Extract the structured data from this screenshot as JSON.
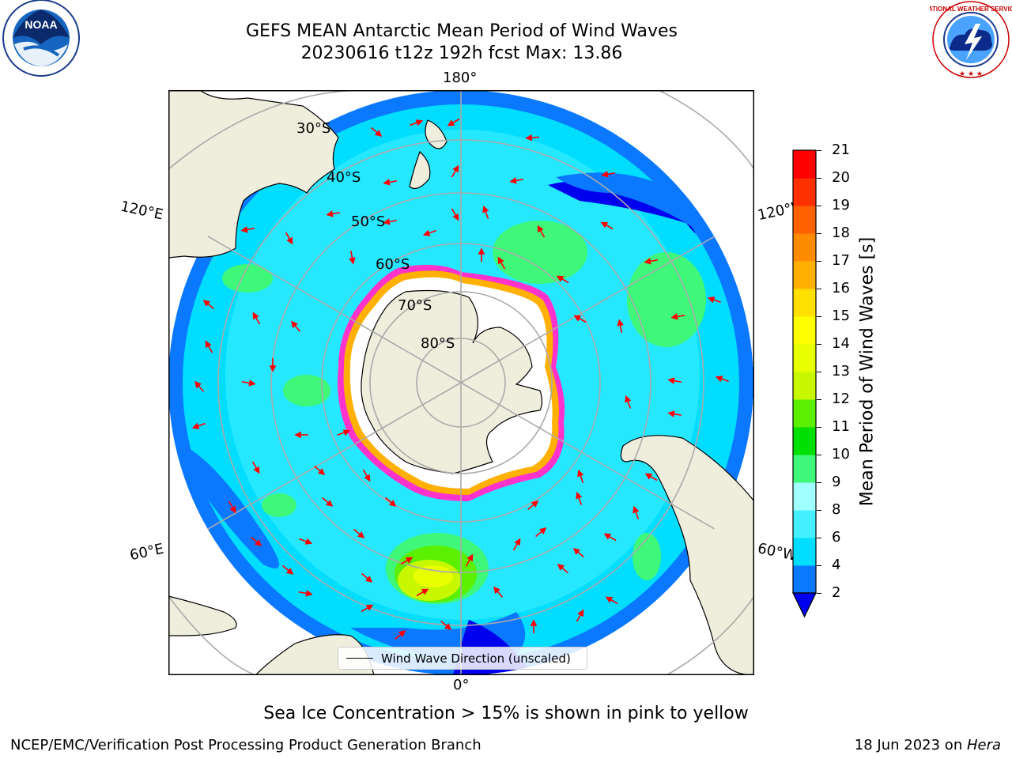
{
  "title": {
    "line1": "GEFS MEAN Antarctic Mean Period of Wind Waves",
    "line2": "20230616 t12z 192h fcst   Max: 13.86"
  },
  "map": {
    "projection": "south polar stereographic",
    "longitude_labels": {
      "top": "180°",
      "bottom": "0°",
      "upper_left": "120°E",
      "upper_right": "120°W",
      "lower_left": "60°E",
      "lower_right": "60°W"
    },
    "latitude_labels": [
      "30°S",
      "40°S",
      "50°S",
      "60°S",
      "70°S",
      "80°S"
    ],
    "arrow_color": "#ff0000",
    "land_color": "#efeddc",
    "ice_color": "#ff33cc"
  },
  "legend": {
    "label": "Wind Wave Direction (unscaled)"
  },
  "colorbar": {
    "label": "Mean Period of Wind Waves [s]",
    "ticks": [
      "2",
      "4",
      "6",
      "8",
      "9",
      "10",
      "11",
      "12",
      "13",
      "14",
      "15",
      "16",
      "17",
      "18",
      "19",
      "20",
      "21"
    ],
    "colors": [
      "#0a78ff",
      "#00ddff",
      "#44f0ff",
      "#a0ffff",
      "#3ff87a",
      "#00e000",
      "#5af000",
      "#c8f800",
      "#e8ff00",
      "#ffff00",
      "#ffe000",
      "#ffb000",
      "#ff8c00",
      "#ff6000",
      "#ff3000",
      "#ff0000"
    ],
    "under_color": "#0000ee"
  },
  "notes": {
    "sea_ice": "Sea Ice Concentration > 15% is shown in pink to yellow"
  },
  "footer": {
    "left": "NCEP/EMC/Verification Post Processing Product Generation Branch",
    "right_date": "18 Jun 2023 on ",
    "right_host": "Hera"
  },
  "logos": {
    "noaa": "NOAA",
    "nws_ring": "NATIONAL WEATHER SERVICE"
  }
}
